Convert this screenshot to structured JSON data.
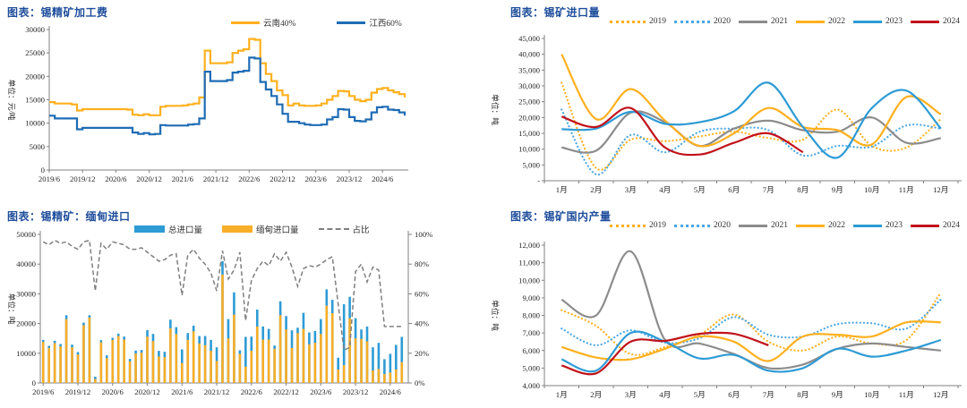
{
  "style": {
    "title_color": "#1F4E9C",
    "background": "#FFFFFF",
    "axis_color": "#808080",
    "tick_text_color": "#262626"
  },
  "chart_data": [
    {
      "id": "processing-fee",
      "type": "line",
      "line_shape": "step",
      "title": "图表：锡精矿加工费",
      "ylabel": "单位：元/吨",
      "ylim": [
        0,
        30000
      ],
      "y_tick_values": [
        0,
        5000,
        10000,
        15000,
        20000,
        25000,
        30000
      ],
      "y_tick_labels": [
        "0",
        "5000",
        "10000",
        "15000",
        "20000",
        "25000",
        "30000"
      ],
      "x_tick_labels": [
        "2019/6",
        "2019/12",
        "2020/6",
        "2020/12",
        "2021/6",
        "2021/12",
        "2022/6",
        "2022/12",
        "2023/6",
        "2023/12",
        "2024/6"
      ],
      "x_tick_positions": [
        0,
        6,
        12,
        18,
        24,
        30,
        36,
        42,
        48,
        54,
        60
      ],
      "x_start": "2019/6",
      "x_freq": "monthly",
      "series": [
        {
          "name": "云南40%",
          "color": "#FFB01E",
          "style": "solid",
          "kind": "line",
          "values": [
            14500,
            14200,
            14200,
            14200,
            14000,
            12700,
            13000,
            13000,
            13000,
            13000,
            13000,
            13000,
            13000,
            13000,
            12900,
            11800,
            11700,
            11900,
            11700,
            11700,
            13500,
            13700,
            13700,
            13700,
            13800,
            14000,
            14200,
            15500,
            25500,
            22800,
            22800,
            22800,
            23000,
            25000,
            25500,
            25800,
            28000,
            27800,
            22800,
            20500,
            19000,
            17000,
            16000,
            13800,
            14200,
            13800,
            13700,
            13700,
            13800,
            14200,
            15000,
            15800,
            16900,
            16800,
            15800,
            15000,
            14700,
            15000,
            16500,
            17300,
            17500,
            17000,
            16600,
            16200,
            15500
          ]
        },
        {
          "name": "江西60%",
          "color": "#1F6CB5",
          "style": "solid",
          "kind": "line",
          "values": [
            11600,
            11000,
            11000,
            11000,
            11000,
            8700,
            9000,
            9000,
            9000,
            9000,
            9000,
            9000,
            9000,
            9000,
            9000,
            8000,
            7700,
            7900,
            7600,
            7700,
            9600,
            9500,
            9500,
            9500,
            9500,
            9700,
            9800,
            11000,
            21000,
            19000,
            19000,
            19000,
            19200,
            20800,
            21000,
            21200,
            24000,
            23800,
            18800,
            17200,
            15800,
            14000,
            12000,
            10300,
            10300,
            10000,
            9700,
            9600,
            9600,
            9700,
            10800,
            11300,
            13000,
            12900,
            11300,
            10500,
            10400,
            10800,
            12300,
            13400,
            13500,
            12900,
            12800,
            12300,
            11600
          ]
        }
      ]
    },
    {
      "id": "ore-imports",
      "type": "line",
      "line_shape": "smooth",
      "title": "图表：锡矿进口量",
      "ylabel": "单位：吨",
      "ylim": [
        0,
        45000
      ],
      "y_tick_values": [
        0,
        5000,
        10000,
        15000,
        20000,
        25000,
        30000,
        35000,
        40000,
        45000
      ],
      "y_tick_labels": [
        "-",
        "5,000",
        "10,000",
        "15,000",
        "20,000",
        "25,000",
        "30,000",
        "35,000",
        "40,000",
        "45,000"
      ],
      "x_labels": [
        "1月",
        "2月",
        "3月",
        "4月",
        "5月",
        "6月",
        "7月",
        "8月",
        "9月",
        "10月",
        "11月",
        "12月"
      ],
      "series": [
        {
          "name": "2019",
          "color": "#FFB01E",
          "style": "dotted",
          "kind": "line",
          "values": [
            31000,
            4000,
            13000,
            12500,
            14000,
            15500,
            13500,
            13000,
            22500,
            11000,
            10500,
            19500
          ]
        },
        {
          "name": "2020",
          "color": "#4BA6E3",
          "style": "dotted",
          "kind": "line",
          "values": [
            22500,
            2000,
            14500,
            9000,
            15500,
            16500,
            16000,
            8000,
            11000,
            10800,
            17500,
            16500
          ]
        },
        {
          "name": "2021",
          "color": "#8C8C8C",
          "style": "solid",
          "kind": "line",
          "values": [
            10500,
            9500,
            21500,
            18500,
            11000,
            16500,
            19000,
            16000,
            15500,
            20000,
            12000,
            13500
          ]
        },
        {
          "name": "2022",
          "color": "#FFB01E",
          "style": "solid",
          "kind": "line",
          "values": [
            40000,
            19500,
            29000,
            19000,
            11000,
            15000,
            23000,
            17000,
            16000,
            11500,
            26500,
            21000
          ]
        },
        {
          "name": "2023",
          "color": "#2E9BD5",
          "style": "solid",
          "kind": "line",
          "values": [
            16300,
            16500,
            21800,
            18000,
            18500,
            22000,
            31000,
            17000,
            7300,
            23000,
            28500,
            16500
          ]
        },
        {
          "name": "2024",
          "color": "#C1121A",
          "style": "solid",
          "kind": "line",
          "values": [
            20300,
            17000,
            23000,
            10500,
            8300,
            12000,
            15000,
            9000
          ]
        }
      ]
    },
    {
      "id": "myanmar-imports",
      "type": "bar",
      "title": "图表：锡精矿：缅甸进口",
      "ylabel": "单位：吨",
      "ylim": [
        0,
        50000
      ],
      "y_tick_values": [
        0,
        10000,
        20000,
        30000,
        40000,
        50000
      ],
      "y_tick_labels": [
        "0",
        "10000",
        "20000",
        "30000",
        "40000",
        "50000"
      ],
      "y2lim": [
        0,
        100
      ],
      "y2_tick_values": [
        0,
        20,
        40,
        60,
        80,
        100
      ],
      "y2_tick_labels": [
        "0%",
        "20%",
        "40%",
        "60%",
        "80%",
        "100%"
      ],
      "x_tick_labels": [
        "2019/6",
        "2019/12",
        "2020/6",
        "2020/12",
        "2021/6",
        "2021/12",
        "2022/6",
        "2022/12",
        "2023/6",
        "2023/12",
        "2024/6"
      ],
      "x_tick_positions": [
        0,
        6,
        12,
        18,
        24,
        30,
        36,
        42,
        48,
        54,
        60
      ],
      "x_start": "2019/6",
      "x_freq": "monthly",
      "series": [
        {
          "name": "总进口量",
          "color": "#2E9BD5",
          "kind": "bar",
          "values": [
            14500,
            12500,
            14200,
            13100,
            22800,
            12900,
            10400,
            20300,
            22800,
            2100,
            14400,
            9300,
            15200,
            16600,
            15600,
            8100,
            10900,
            11100,
            17800,
            16500,
            10800,
            10500,
            21300,
            18800,
            11300,
            16800,
            19300,
            15800,
            15800,
            14500,
            12000,
            41000,
            21500,
            30500,
            11000,
            15500,
            15600,
            24700,
            19000,
            18200,
            12600,
            27500,
            22500,
            17700,
            18600,
            23600,
            17000,
            17500,
            21500,
            31500,
            28000,
            8500,
            26500,
            29000,
            21800,
            18000,
            19000,
            12000,
            13500,
            8000,
            9800,
            12800,
            15500
          ]
        },
        {
          "name": "缅甸进口量",
          "color": "#F7AE28",
          "kind": "bar",
          "values": [
            13800,
            11800,
            13400,
            12300,
            21500,
            12000,
            9600,
            19400,
            22000,
            1300,
            13700,
            8400,
            14500,
            15800,
            14600,
            7300,
            9900,
            10200,
            15600,
            14100,
            8900,
            8700,
            18400,
            16500,
            6700,
            14500,
            17400,
            13300,
            12700,
            10800,
            7400,
            36500,
            15000,
            23000,
            9800,
            5500,
            10800,
            19000,
            14600,
            14600,
            11500,
            22800,
            18000,
            11800,
            16800,
            18200,
            13000,
            13500,
            16500,
            26000,
            23500,
            4500,
            6000,
            21800,
            15000,
            14800,
            14000,
            4200,
            4700,
            3000,
            3500,
            4500,
            7000
          ]
        },
        {
          "name": "占比",
          "color": "#7F7F7F",
          "kind": "line",
          "style": "dashed",
          "axis": "y2",
          "values": [
            95,
            93,
            96,
            94,
            95,
            92,
            90,
            95,
            96,
            62,
            94,
            90,
            95,
            94,
            93,
            90,
            90,
            91,
            88,
            85,
            82,
            83,
            86,
            87,
            59,
            86,
            90,
            84,
            80,
            74,
            62,
            89,
            70,
            76,
            88,
            42,
            69,
            77,
            82,
            79,
            87,
            82,
            88,
            78,
            65,
            77,
            79,
            78,
            80,
            83,
            85,
            53,
            22,
            24,
            75,
            80,
            68,
            78,
            76,
            38,
            38,
            38,
            38
          ]
        }
      ]
    },
    {
      "id": "domestic-production",
      "type": "line",
      "line_shape": "smooth",
      "title": "图表：锡矿国内产量",
      "ylabel": "单位：吨",
      "ylim": [
        4000,
        12000
      ],
      "y_tick_values": [
        4000,
        5000,
        6000,
        7000,
        8000,
        9000,
        10000,
        11000,
        12000
      ],
      "y_tick_labels": [
        "4,000",
        "5,000",
        "6,000",
        "7,000",
        "8,000",
        "9,000",
        "10,000",
        "11,000",
        "12,000"
      ],
      "x_labels": [
        "1月",
        "2月",
        "3月",
        "4月",
        "5月",
        "6月",
        "7月",
        "8月",
        "9月",
        "10月",
        "11月",
        "12月"
      ],
      "series": [
        {
          "name": "2019",
          "color": "#FFB01E",
          "style": "dotted",
          "kind": "line",
          "values": [
            8300,
            7400,
            5800,
            6200,
            6900,
            8050,
            6500,
            6000,
            6800,
            6400,
            6600,
            9300
          ]
        },
        {
          "name": "2020",
          "color": "#4BA6E3",
          "style": "dotted",
          "kind": "line",
          "values": [
            7250,
            6300,
            7150,
            6450,
            6700,
            7900,
            6900,
            6800,
            7500,
            7550,
            7250,
            8900
          ]
        },
        {
          "name": "2021",
          "color": "#8C8C8C",
          "style": "solid",
          "kind": "line",
          "values": [
            8900,
            8000,
            11650,
            6600,
            6400,
            5800,
            5000,
            5200,
            6100,
            6400,
            6200,
            6000
          ]
        },
        {
          "name": "2022",
          "color": "#FFB01E",
          "style": "solid",
          "kind": "line",
          "values": [
            6200,
            5600,
            5500,
            6100,
            6800,
            6500,
            5400,
            6800,
            6900,
            6800,
            7600,
            7600
          ]
        },
        {
          "name": "2023",
          "color": "#2E9BD5",
          "style": "solid",
          "kind": "line",
          "values": [
            5500,
            4850,
            7000,
            6500,
            5550,
            5750,
            4850,
            5000,
            6100,
            5650,
            6000,
            6600
          ]
        },
        {
          "name": "2024",
          "color": "#C1121A",
          "style": "solid",
          "kind": "line",
          "values": [
            5150,
            4700,
            6500,
            6550,
            6950,
            6950,
            6300
          ]
        }
      ]
    }
  ]
}
